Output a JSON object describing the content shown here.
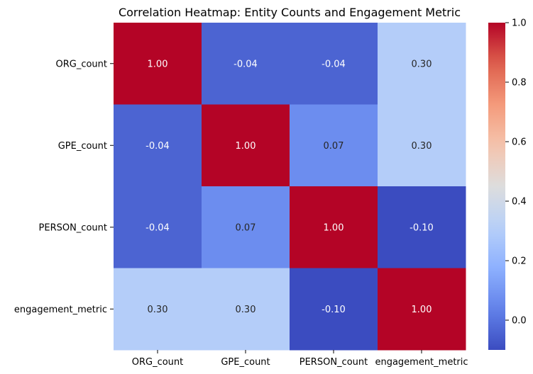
{
  "chart_data": {
    "type": "heatmap",
    "title": "Correlation Heatmap: Entity Counts and Engagement Metric",
    "xlabel": "",
    "ylabel": "",
    "rows": [
      "ORG_count",
      "GPE_count",
      "PERSON_count",
      "engagement_metric"
    ],
    "columns": [
      "ORG_count",
      "GPE_count",
      "PERSON_count",
      "engagement_metric"
    ],
    "values": [
      [
        1.0,
        -0.04,
        -0.04,
        0.3
      ],
      [
        -0.04,
        1.0,
        0.07,
        0.3
      ],
      [
        -0.04,
        0.07,
        1.0,
        -0.1
      ],
      [
        0.3,
        0.3,
        -0.1,
        1.0
      ]
    ],
    "annotations": [
      [
        "1.00",
        "-0.04",
        "-0.04",
        "0.30"
      ],
      [
        "-0.04",
        "1.00",
        "0.07",
        "0.30"
      ],
      [
        "-0.04",
        "0.07",
        "1.00",
        "-0.10"
      ],
      [
        "0.30",
        "0.30",
        "-0.10",
        "1.00"
      ]
    ],
    "colormap": "coolwarm",
    "color_range": [
      -0.1,
      1.0
    ],
    "colorbar_ticks": [
      {
        "value": 1.0,
        "label": "1.0"
      },
      {
        "value": 0.8,
        "label": "0.8"
      },
      {
        "value": 0.6,
        "label": "0.6"
      },
      {
        "value": 0.4,
        "label": "0.4"
      },
      {
        "value": 0.2,
        "label": "0.2"
      },
      {
        "value": 0.0,
        "label": "0.0"
      }
    ],
    "grid": false,
    "legend": "colorbar-right"
  }
}
